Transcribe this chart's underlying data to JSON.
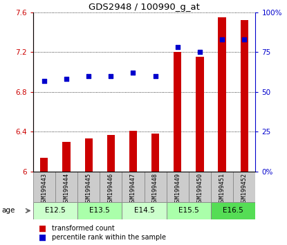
{
  "title": "GDS2948 / 100990_g_at",
  "samples": [
    "GSM199443",
    "GSM199444",
    "GSM199445",
    "GSM199446",
    "GSM199447",
    "GSM199448",
    "GSM199449",
    "GSM199450",
    "GSM199451",
    "GSM199452"
  ],
  "transformed_count": [
    6.14,
    6.3,
    6.33,
    6.37,
    6.41,
    6.38,
    7.2,
    7.15,
    7.55,
    7.52
  ],
  "percentile_rank": [
    57,
    58,
    60,
    60,
    62,
    60,
    78,
    75,
    83,
    83
  ],
  "ylim_left": [
    6.0,
    7.6
  ],
  "ylim_right": [
    0,
    100
  ],
  "yticks_left": [
    6.0,
    6.4,
    6.8,
    7.2,
    7.6
  ],
  "yticks_right": [
    0,
    25,
    50,
    75,
    100
  ],
  "ytick_labels_right": [
    "0%",
    "25",
    "50",
    "75",
    "100%"
  ],
  "bar_color": "#cc0000",
  "dot_color": "#0000cc",
  "age_groups": [
    {
      "label": "E12.5",
      "start": 0,
      "end": 2,
      "color": "#ccffcc"
    },
    {
      "label": "E13.5",
      "start": 2,
      "end": 4,
      "color": "#aaffaa"
    },
    {
      "label": "E14.5",
      "start": 4,
      "end": 6,
      "color": "#ccffcc"
    },
    {
      "label": "E15.5",
      "start": 6,
      "end": 8,
      "color": "#aaffaa"
    },
    {
      "label": "E16.5",
      "start": 8,
      "end": 10,
      "color": "#55dd55"
    }
  ],
  "bar_width": 0.35,
  "dot_size": 22,
  "bg_color": "#ffffff",
  "sample_box_color": "#cccccc"
}
